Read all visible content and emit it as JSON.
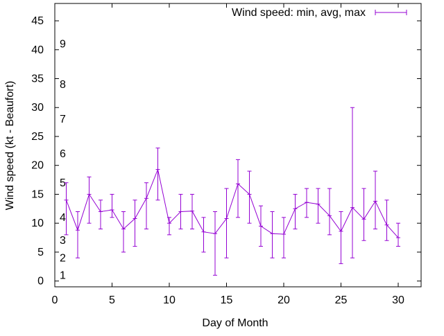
{
  "chart_data": {
    "type": "line",
    "title": "",
    "xlabel": "Day of Month",
    "ylabel": "Wind speed (kt - Beaufort)",
    "xlim": [
      0,
      32
    ],
    "ylim": [
      -1,
      48
    ],
    "x_ticks": [
      0,
      5,
      10,
      15,
      20,
      25,
      30
    ],
    "y_ticks": [
      0,
      5,
      10,
      15,
      20,
      25,
      30,
      35,
      40,
      45
    ],
    "grid": false,
    "legend_position": "top-right",
    "color": "#9400d3",
    "beaufort_labels": [
      {
        "text": "1",
        "y": 1
      },
      {
        "text": "2",
        "y": 4
      },
      {
        "text": "3",
        "y": 7
      },
      {
        "text": "4",
        "y": 11
      },
      {
        "text": "5",
        "y": 17
      },
      {
        "text": "6",
        "y": 22
      },
      {
        "text": "7",
        "y": 28
      },
      {
        "text": "8",
        "y": 34
      },
      {
        "text": "9",
        "y": 41
      }
    ],
    "series": [
      {
        "name": "Wind speed: min, avg, max",
        "x": [
          1,
          2,
          3,
          4,
          5,
          6,
          7,
          8,
          9,
          10,
          11,
          12,
          13,
          14,
          15,
          16,
          17,
          18,
          19,
          20,
          21,
          22,
          23,
          24,
          25,
          26,
          27,
          28,
          29,
          30
        ],
        "avg": [
          14,
          8.8,
          15,
          12,
          12.3,
          9,
          10.8,
          14.3,
          19.3,
          10,
          12,
          12.1,
          8.5,
          8.2,
          10.8,
          16.8,
          15,
          9.5,
          8.2,
          8.1,
          12.5,
          13.6,
          13.3,
          11.3,
          8.6,
          12.7,
          10.7,
          13.8,
          9.7,
          7.5
        ],
        "min": [
          8,
          4,
          10,
          9,
          11,
          5,
          6,
          9,
          14,
          8,
          9,
          9,
          5,
          1,
          4,
          11,
          10,
          6,
          4,
          4,
          9,
          11,
          10,
          8,
          3,
          4,
          7,
          9,
          7,
          6
        ],
        "max": [
          17,
          12,
          18,
          14,
          15,
          12,
          14,
          17,
          23,
          11,
          15,
          15,
          11,
          12,
          16,
          21,
          19,
          13,
          12,
          11,
          15,
          16,
          16,
          16,
          12,
          30,
          16,
          19,
          14,
          10
        ]
      }
    ]
  }
}
